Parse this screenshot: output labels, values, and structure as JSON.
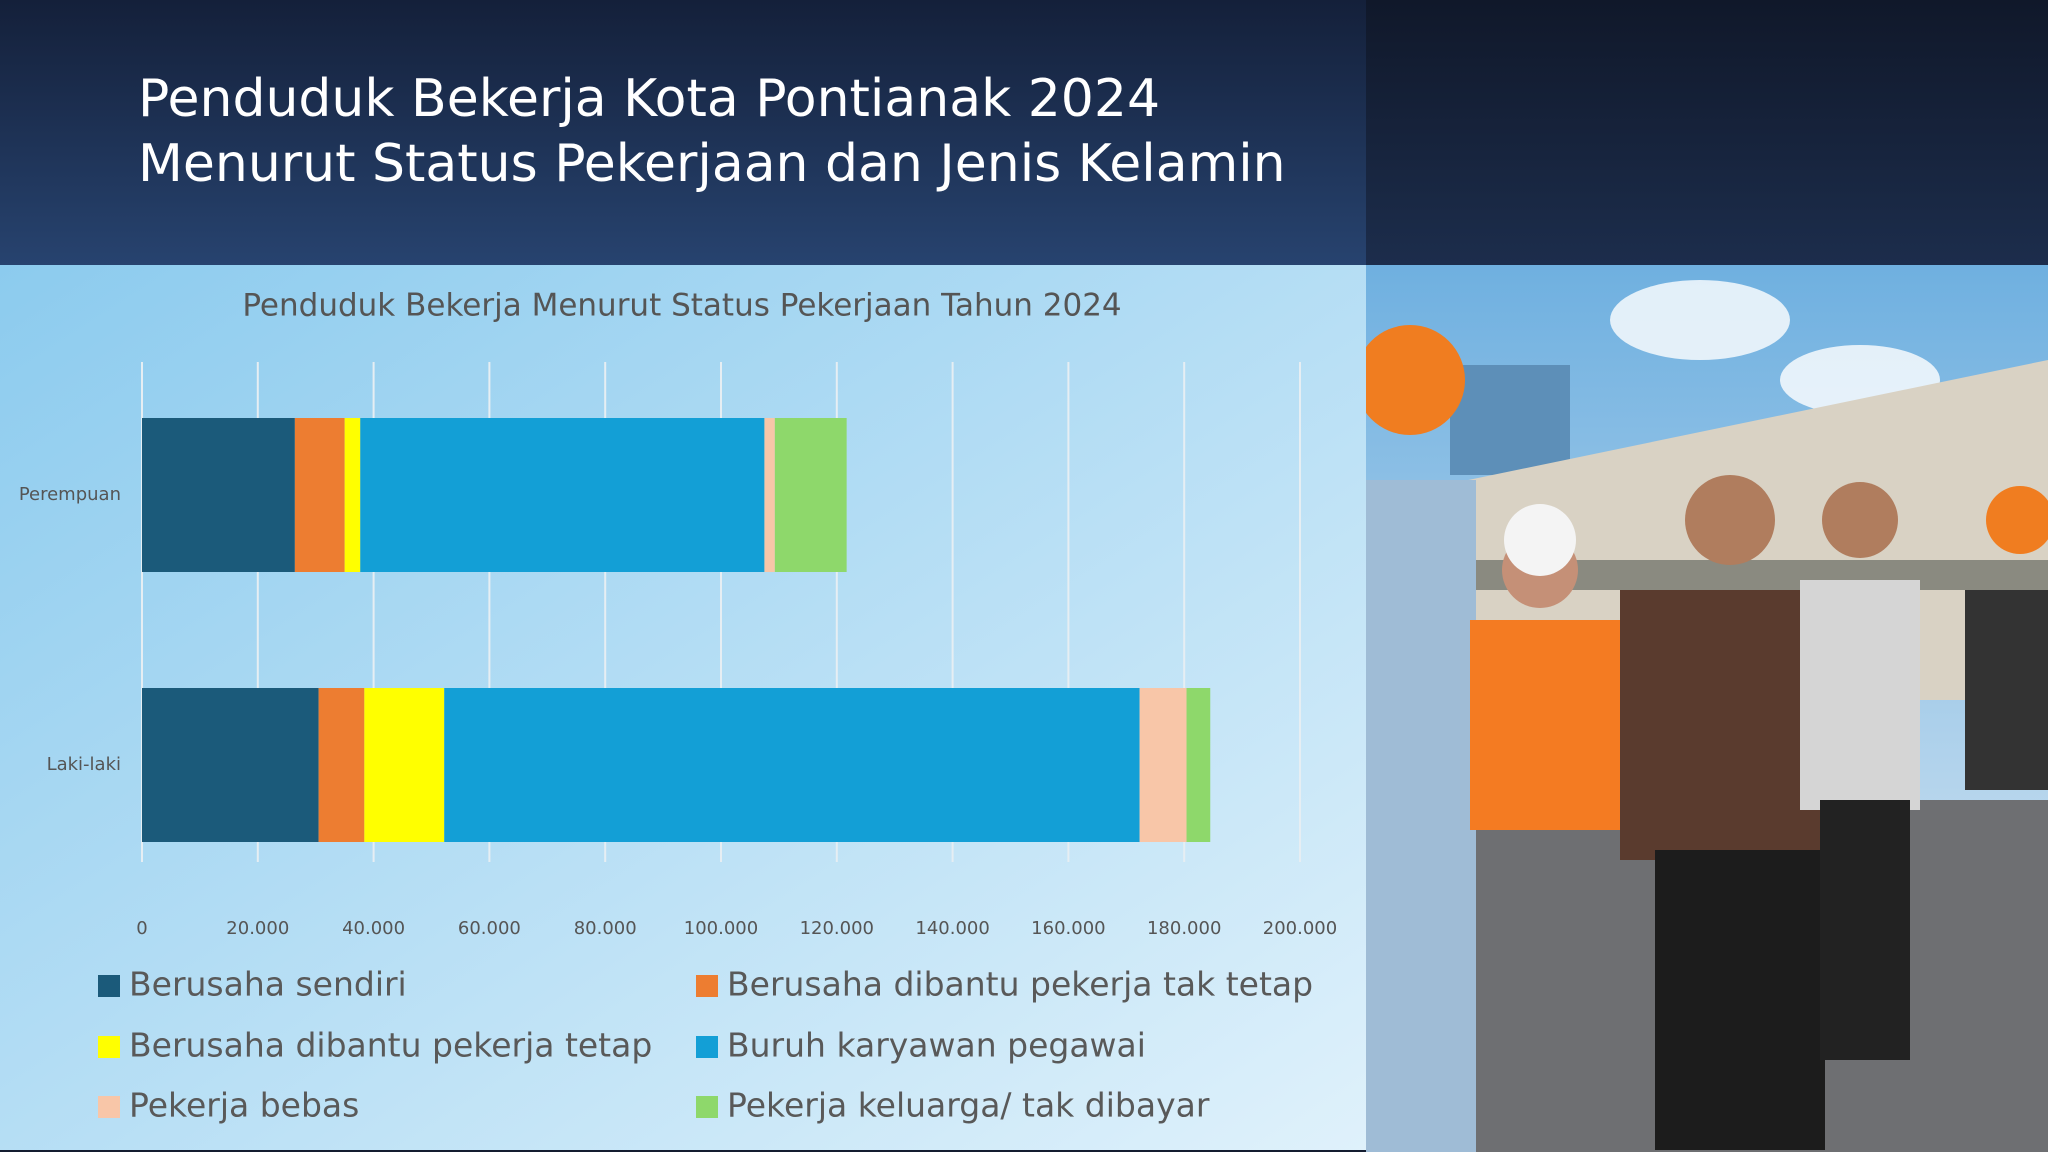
{
  "header": {
    "title_line1": "Penduduk Bekerja Kota Pontianak 2024",
    "title_line2": "Menurut Status Pekerjaan dan Jenis Kelamin"
  },
  "chart_data": {
    "type": "stacked_bar_horizontal",
    "title": "Penduduk  Bekerja Menurut Status Pekerjaan Tahun 2024",
    "categories": [
      "Perempuan",
      "Laki-laki"
    ],
    "series": [
      {
        "name": "Berusaha sendiri",
        "color": "#1b5a7a",
        "values": [
          26400,
          30500
        ]
      },
      {
        "name": "Berusaha dibantu pekerja tak tetap",
        "color": "#ed7d31",
        "values": [
          8600,
          7900
        ]
      },
      {
        "name": "Berusaha dibantu pekerja tetap",
        "color": "#ffff00",
        "values": [
          2700,
          13800
        ]
      },
      {
        "name": "Buruh karyawan pegawai",
        "color": "#139fd6",
        "values": [
          69800,
          120100
        ]
      },
      {
        "name": "Pekerja bebas",
        "color": "#f8c6a8",
        "values": [
          1800,
          8100
        ]
      },
      {
        "name": "Pekerja keluarga/ tak dibayar",
        "color": "#8ed86b",
        "values": [
          12400,
          4100
        ]
      }
    ],
    "xlim": [
      0,
      200000
    ],
    "xticks": [
      0,
      {
        "value": 20000,
        "label": "20.000"
      },
      {
        "value": 40000,
        "label": "40.000"
      },
      {
        "value": 60000,
        "label": "60.000"
      },
      {
        "value": 80000,
        "label": "80.000"
      },
      {
        "value": 100000,
        "label": "100.000"
      },
      {
        "value": 120000,
        "label": "120.000"
      },
      {
        "value": 140000,
        "label": "140.000"
      },
      {
        "value": 160000,
        "label": "160.000"
      },
      {
        "value": 180000,
        "label": "180.000"
      },
      {
        "value": 200000,
        "label": "200.000"
      }
    ],
    "grid": true,
    "legend": "bottom"
  }
}
